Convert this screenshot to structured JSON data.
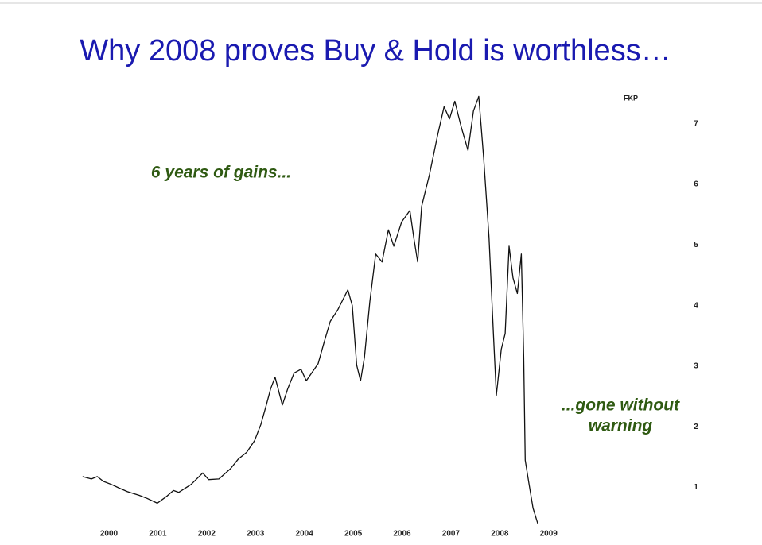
{
  "chart_data": {
    "type": "line",
    "title": "Why 2008 proves Buy & Hold is worthless…",
    "y_label": "FKP",
    "annotations": [
      "6 years of gains...",
      "...gone without",
      "warning"
    ],
    "x": [
      1999.46,
      1999.64,
      1999.76,
      1999.89,
      2000.05,
      2000.21,
      2000.38,
      2000.62,
      2000.78,
      2000.99,
      2001.19,
      2001.32,
      2001.43,
      2001.68,
      2001.92,
      2002.04,
      2002.25,
      2002.49,
      2002.65,
      2002.82,
      2002.98,
      2003.11,
      2003.22,
      2003.31,
      2003.4,
      2003.55,
      2003.66,
      2003.79,
      2003.93,
      2004.04,
      2004.15,
      2004.28,
      2004.41,
      2004.53,
      2004.69,
      2004.89,
      2004.98,
      2005.07,
      2005.15,
      2005.23,
      2005.34,
      2005.46,
      2005.59,
      2005.72,
      2005.83,
      2005.99,
      2006.16,
      2006.24,
      2006.32,
      2006.4,
      2006.56,
      2006.73,
      2006.86,
      2006.97,
      2007.08,
      2007.21,
      2007.35,
      2007.46,
      2007.57,
      2007.67,
      2007.78,
      2007.87,
      2007.93,
      2008.03,
      2008.11,
      2008.19,
      2008.27,
      2008.36,
      2008.44,
      2008.49,
      2008.52,
      2008.6,
      2008.68,
      2008.78
    ],
    "series": [
      {
        "color": "#111111",
        "values": [
          1.18,
          1.14,
          1.18,
          1.1,
          1.05,
          0.99,
          0.93,
          0.87,
          0.82,
          0.74,
          0.86,
          0.95,
          0.92,
          1.05,
          1.24,
          1.13,
          1.14,
          1.31,
          1.47,
          1.58,
          1.77,
          2.04,
          2.36,
          2.63,
          2.82,
          2.36,
          2.63,
          2.89,
          2.95,
          2.76,
          2.89,
          3.04,
          3.41,
          3.74,
          3.94,
          4.26,
          4.0,
          3.02,
          2.76,
          3.15,
          4.07,
          4.85,
          4.72,
          5.25,
          4.98,
          5.38,
          5.57,
          5.12,
          4.72,
          5.64,
          6.16,
          6.82,
          7.28,
          7.08,
          7.37,
          6.95,
          6.56,
          7.21,
          7.45,
          6.43,
          5.12,
          3.54,
          2.52,
          3.28,
          3.54,
          4.98,
          4.46,
          4.2,
          4.85,
          3.15,
          1.45,
          1.05,
          0.66,
          0.4
        ]
      }
    ],
    "xlim": [
      1999.3,
      2012
    ],
    "xticks": [
      2000,
      2001,
      2002,
      2003,
      2004,
      2005,
      2006,
      2007,
      2008,
      2009
    ],
    "ylim": [
      0.3,
      7.6
    ],
    "yticks": [
      1,
      2,
      3,
      4,
      5,
      6,
      7
    ],
    "annotation_color": "#2f5a12",
    "title_color": "#1a1ab0"
  }
}
